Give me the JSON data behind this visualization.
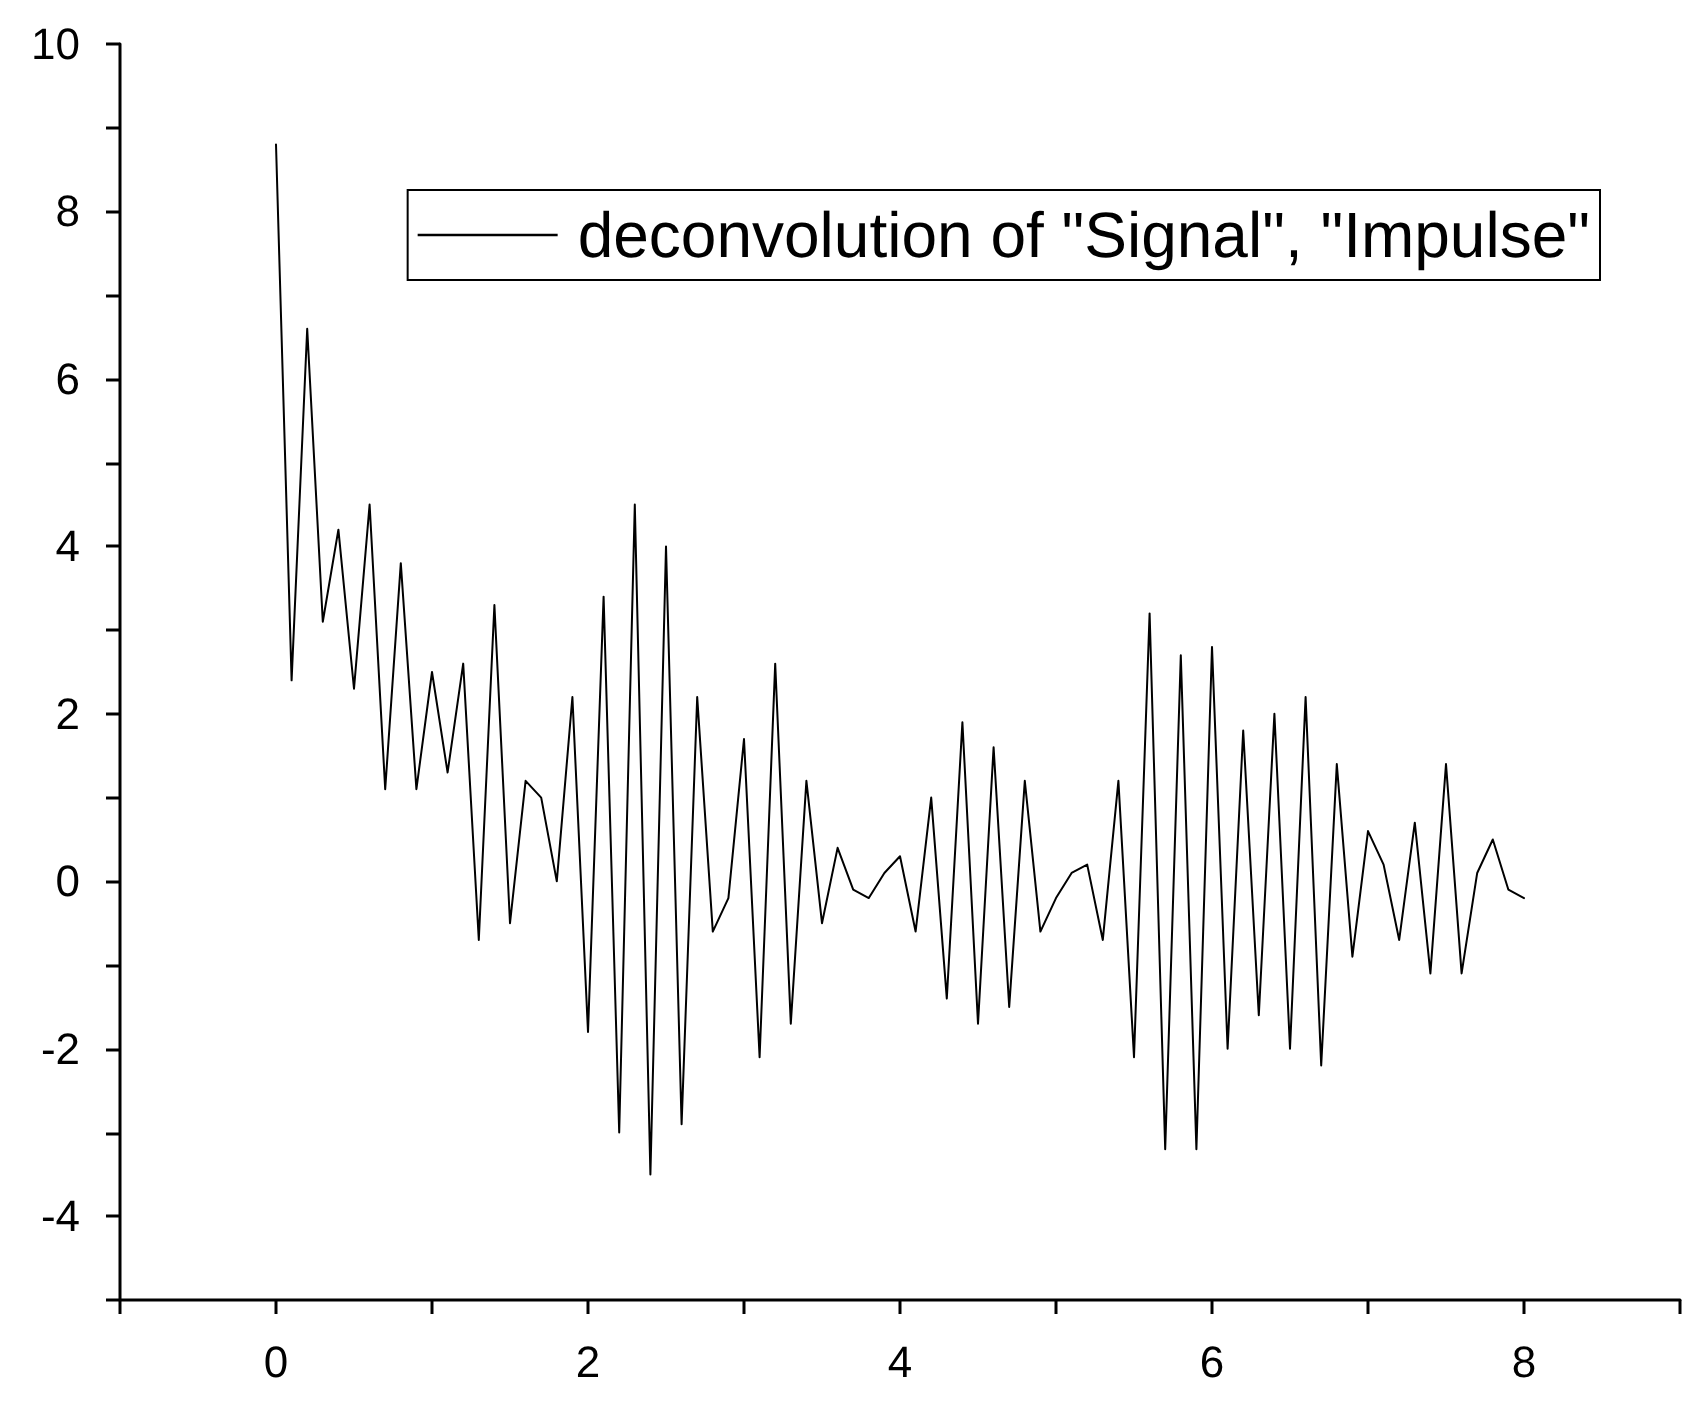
{
  "chart_data": {
    "type": "line",
    "x": [
      0,
      0.1,
      0.2,
      0.3,
      0.4,
      0.5,
      0.6,
      0.7,
      0.8,
      0.9,
      1,
      1.1,
      1.2,
      1.3,
      1.4,
      1.5,
      1.6,
      1.7,
      1.8,
      1.9,
      2,
      2.1,
      2.2,
      2.3,
      2.4,
      2.5,
      2.6,
      2.7,
      2.8,
      2.9,
      3,
      3.1,
      3.2,
      3.3,
      3.4,
      3.5,
      3.6,
      3.7,
      3.8,
      3.9,
      4,
      4.1,
      4.2,
      4.3,
      4.4,
      4.5,
      4.6,
      4.7,
      4.8,
      4.9,
      5,
      5.1,
      5.2,
      5.3,
      5.4,
      5.5,
      5.6,
      5.7,
      5.8,
      5.9,
      6,
      6.1,
      6.2,
      6.3,
      6.4,
      6.5,
      6.6,
      6.7,
      6.8,
      6.9,
      7,
      7.1,
      7.2,
      7.3,
      7.4,
      7.5,
      7.6,
      7.7,
      7.8,
      7.9,
      8
    ],
    "series": [
      {
        "name": "deconvolution of \"Signal\", \"Impulse\"",
        "color": "#000000",
        "values": [
          8.8,
          2.4,
          6.6,
          3.1,
          4.2,
          2.3,
          4.5,
          1.1,
          3.8,
          1.1,
          2.5,
          1.3,
          2.6,
          -0.7,
          3.3,
          -0.5,
          1.2,
          1.0,
          0.0,
          2.2,
          -1.8,
          3.4,
          -3.0,
          4.5,
          -3.5,
          4.0,
          -2.9,
          2.2,
          -0.6,
          -0.2,
          1.7,
          -2.1,
          2.6,
          -1.7,
          1.2,
          -0.5,
          0.4,
          -0.1,
          -0.2,
          0.1,
          0.3,
          -0.6,
          1.0,
          -1.4,
          1.9,
          -1.7,
          1.6,
          -1.5,
          1.2,
          -0.6,
          -0.2,
          0.1,
          0.2,
          -0.7,
          1.2,
          -2.1,
          3.2,
          -3.2,
          2.7,
          -3.2,
          2.8,
          -2.0,
          1.8,
          -1.6,
          2.0,
          -2.0,
          2.2,
          -2.2,
          1.4,
          -0.9,
          0.6,
          0.2,
          -0.7,
          0.7,
          -1.1,
          1.4,
          -1.1,
          0.1,
          0.5,
          -0.1,
          -0.2
        ]
      }
    ],
    "xlim": [
      -1,
      9
    ],
    "xticks": [
      {
        "value": -1,
        "label": null
      },
      0,
      {
        "value": 1,
        "label": null
      },
      2,
      {
        "value": 3,
        "label": null
      },
      4,
      {
        "value": 5,
        "label": null
      },
      6,
      {
        "value": 7,
        "label": null
      },
      8,
      {
        "value": 9,
        "label": null
      }
    ],
    "ylim": [
      -5,
      10
    ],
    "yticks": [
      {
        "value": -5,
        "label": null
      },
      -4,
      {
        "value": -3,
        "label": null
      },
      -2,
      {
        "value": -1,
        "label": null
      },
      0,
      {
        "value": 1,
        "label": null
      },
      2,
      {
        "value": 3,
        "label": null
      },
      4,
      {
        "value": 5,
        "label": null
      },
      6,
      {
        "value": 7,
        "label": null
      },
      8,
      {
        "value": 9,
        "label": null
      },
      10
    ],
    "legend": "top right",
    "marker": "none",
    "line_style": "solid"
  }
}
